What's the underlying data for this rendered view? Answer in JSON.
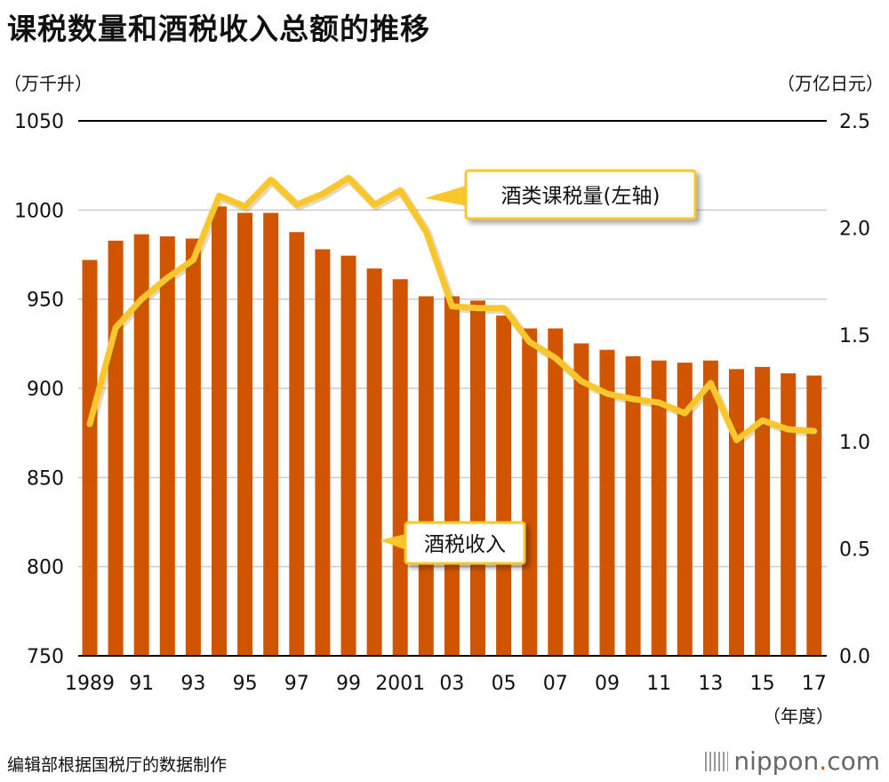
{
  "title": "课税数量和酒税收入总额的推移",
  "source": "编辑部根据国税厅的数据制作",
  "brand": {
    "name": "nippon",
    "dot": ".",
    "tld": "com"
  },
  "colors": {
    "bar": "#d15400",
    "line": "#f9c72b",
    "grid": "#cccccc",
    "axis": "#000000"
  },
  "chart_data": {
    "type": "bar+line",
    "title": "课税数量和酒税收入总额的推移",
    "left_axis_unit": "（万千升）",
    "right_axis_unit": "（万亿日元）",
    "x_unit": "（年度）",
    "left_ylim": [
      750,
      1050
    ],
    "right_ylim": [
      0,
      2.5
    ],
    "left_ticks": [
      "1050",
      "1000",
      "950",
      "900",
      "850",
      "800",
      "750"
    ],
    "left_tick_values": [
      1050,
      1000,
      950,
      900,
      850,
      800,
      750
    ],
    "right_ticks": [
      "2.5",
      "2.0",
      "1.5",
      "1.0",
      "0.5",
      "0.0"
    ],
    "right_tick_values": [
      2.5,
      2.0,
      1.5,
      1.0,
      0.5,
      0.0
    ],
    "x": [
      1989,
      1990,
      1991,
      1992,
      1993,
      1994,
      1995,
      1996,
      1997,
      1998,
      1999,
      2000,
      2001,
      2002,
      2003,
      2004,
      2005,
      2006,
      2007,
      2008,
      2009,
      2010,
      2011,
      2012,
      2013,
      2014,
      2015,
      2016,
      2017
    ],
    "x_tick_labels": [
      "1989",
      "91",
      "93",
      "95",
      "97",
      "99",
      "2001",
      "03",
      "05",
      "07",
      "09",
      "11",
      "13",
      "15",
      "17"
    ],
    "x_tick_years": [
      1989,
      1991,
      1993,
      1995,
      1997,
      1999,
      2001,
      2003,
      2005,
      2007,
      2009,
      2011,
      2013,
      2015,
      2017
    ],
    "series": [
      {
        "name": "酒税收入",
        "type": "bar",
        "axis": "right",
        "unit": "万亿日元",
        "values": [
          1.85,
          1.94,
          1.97,
          1.96,
          1.95,
          2.1,
          2.07,
          2.07,
          1.98,
          1.9,
          1.87,
          1.81,
          1.76,
          1.68,
          1.68,
          1.66,
          1.59,
          1.53,
          1.53,
          1.46,
          1.43,
          1.4,
          1.38,
          1.37,
          1.38,
          1.34,
          1.35,
          1.32,
          1.31
        ]
      },
      {
        "name": "酒类课税量（左轴）",
        "type": "line",
        "axis": "left",
        "unit": "万千升",
        "values": [
          880,
          934,
          950,
          962,
          972,
          1008,
          1002,
          1017,
          1003,
          1009,
          1018,
          1003,
          1011,
          988,
          946,
          945,
          945,
          926,
          917,
          904,
          897,
          894,
          892,
          886,
          903,
          871,
          882,
          877,
          876
        ]
      }
    ],
    "annotations": {
      "line_label": "酒类课税量(左轴)",
      "bar_label": "酒税收入"
    }
  }
}
